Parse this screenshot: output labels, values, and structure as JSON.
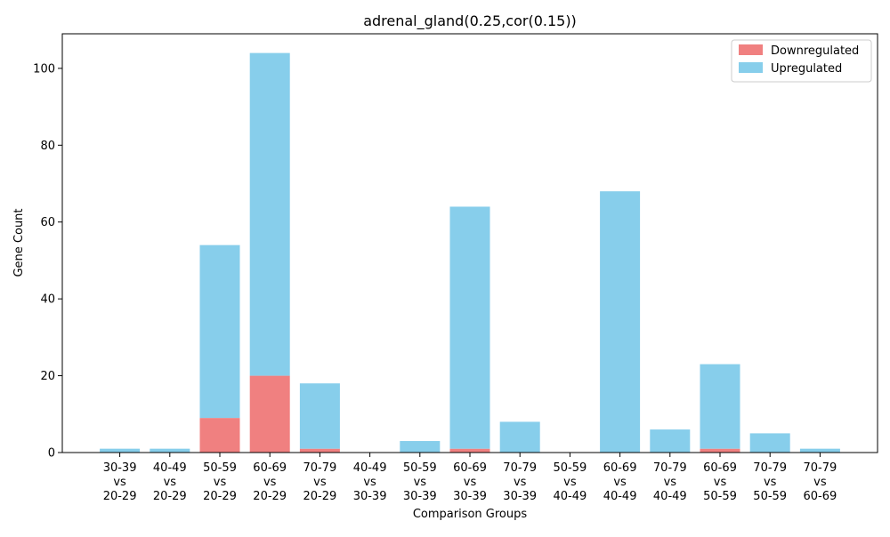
{
  "chart_data": {
    "type": "bar",
    "stacked": true,
    "title": "adrenal_gland(0.25,cor(0.15))",
    "xlabel": "Comparison Groups",
    "ylabel": "Gene Count",
    "ylim": [
      0,
      109
    ],
    "yticks": [
      0,
      20,
      40,
      60,
      80,
      100
    ],
    "grid": false,
    "legend_position": "top-right",
    "categories": [
      [
        "30-39",
        "vs",
        "20-29"
      ],
      [
        "40-49",
        "vs",
        "20-29"
      ],
      [
        "50-59",
        "vs",
        "20-29"
      ],
      [
        "60-69",
        "vs",
        "20-29"
      ],
      [
        "70-79",
        "vs",
        "20-29"
      ],
      [
        "40-49",
        "vs",
        "30-39"
      ],
      [
        "50-59",
        "vs",
        "30-39"
      ],
      [
        "60-69",
        "vs",
        "30-39"
      ],
      [
        "70-79",
        "vs",
        "30-39"
      ],
      [
        "50-59",
        "vs",
        "40-49"
      ],
      [
        "60-69",
        "vs",
        "40-49"
      ],
      [
        "70-79",
        "vs",
        "40-49"
      ],
      [
        "60-69",
        "vs",
        "50-59"
      ],
      [
        "70-79",
        "vs",
        "50-59"
      ],
      [
        "70-79",
        "vs",
        "60-69"
      ]
    ],
    "series": [
      {
        "name": "Downregulated",
        "color": "#f08080",
        "values": [
          0,
          0,
          9,
          20,
          1,
          0,
          0,
          1,
          0,
          0,
          0,
          0,
          1,
          0,
          0
        ]
      },
      {
        "name": "Upregulated",
        "color": "#87ceeb",
        "values": [
          1,
          1,
          45,
          84,
          17,
          0,
          3,
          63,
          8,
          0,
          68,
          6,
          22,
          5,
          1
        ]
      }
    ]
  }
}
